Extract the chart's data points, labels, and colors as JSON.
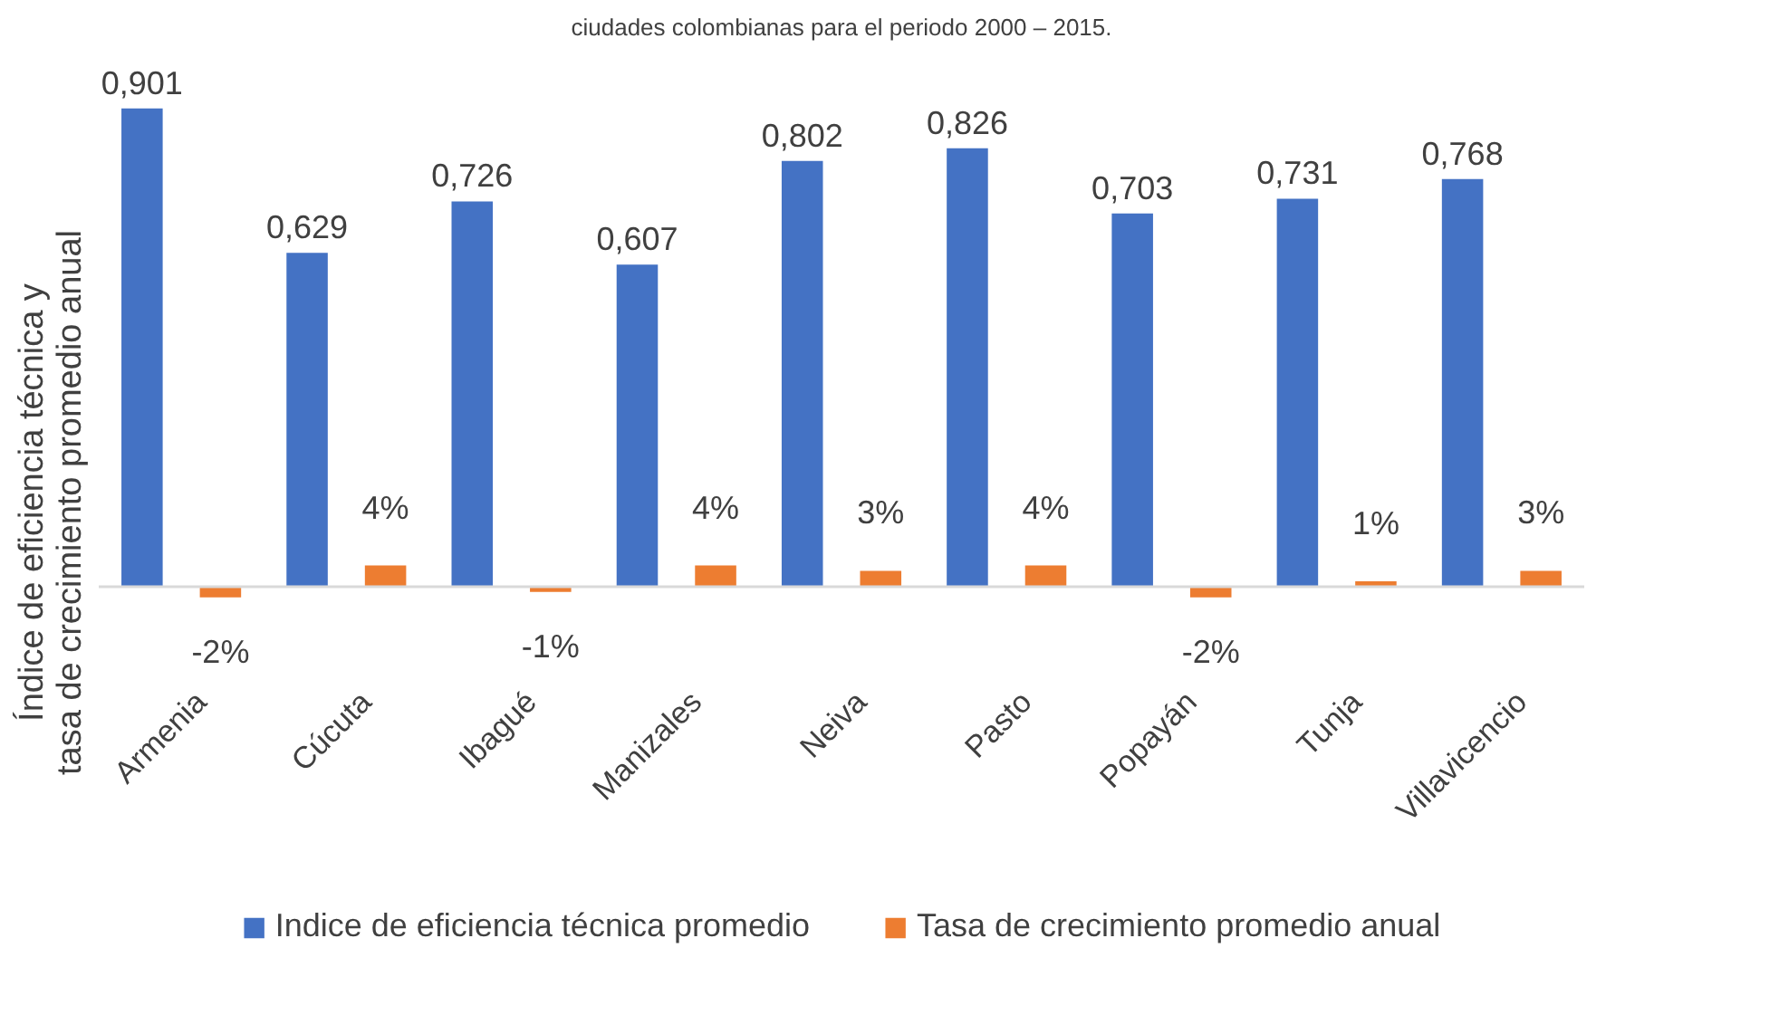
{
  "chart_data": {
    "type": "bar",
    "title": "ciudades colombianas para el periodo 2000 – 2015.",
    "ylabel": "Índice de eficiencia técnica y tasa de crecimiento promedio anual",
    "categories": [
      "Armenia",
      "Cúcuta",
      "Ibagué",
      "Manizales",
      "Neiva",
      "Pasto",
      "Popayán",
      "Tunja",
      "Villavicencio"
    ],
    "series": [
      {
        "name": "Indice de eficiencia técnica promedio",
        "color": "#4472c4",
        "values": [
          0.901,
          0.629,
          0.726,
          0.607,
          0.802,
          0.826,
          0.703,
          0.731,
          0.768
        ],
        "value_labels": [
          "0,901",
          "0,629",
          "0,726",
          "0,607",
          "0,802",
          "0,826",
          "0,703",
          "0,731",
          "0,768"
        ]
      },
      {
        "name": "Tasa de crecimiento promedio anual",
        "color": "#ed7d31",
        "values": [
          -0.02,
          0.04,
          -0.01,
          0.04,
          0.03,
          0.04,
          -0.02,
          0.01,
          0.03
        ],
        "value_labels": [
          "-2%",
          "4%",
          "-1%",
          "4%",
          "3%",
          "4%",
          "-2%",
          "1%",
          "3%"
        ]
      }
    ],
    "legend": "bottom"
  }
}
